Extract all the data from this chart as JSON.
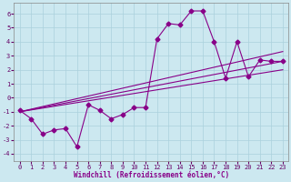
{
  "background_color": "#cce8f0",
  "grid_color": "#aad0dc",
  "line_color": "#880088",
  "marker_size": 2.5,
  "line_width": 0.8,
  "xlabel": "Windchill (Refroidissement éolien,°C)",
  "xlabel_fontsize": 5.5,
  "tick_fontsize": 5.0,
  "xlim": [
    -0.5,
    23.5
  ],
  "ylim": [
    -4.5,
    6.8
  ],
  "yticks": [
    -4,
    -3,
    -2,
    -1,
    0,
    1,
    2,
    3,
    4,
    5,
    6
  ],
  "xticks": [
    0,
    1,
    2,
    3,
    4,
    5,
    6,
    7,
    8,
    9,
    10,
    11,
    12,
    13,
    14,
    15,
    16,
    17,
    18,
    19,
    20,
    21,
    22,
    23
  ],
  "main_x": [
    0,
    1,
    2,
    3,
    4,
    5,
    6,
    7,
    8,
    9,
    10,
    11,
    12,
    13,
    14,
    15,
    16,
    17,
    18,
    19,
    20,
    21,
    22,
    23
  ],
  "main_y": [
    -0.9,
    -1.5,
    -2.6,
    -2.3,
    -2.2,
    -3.5,
    -0.5,
    -0.9,
    -1.5,
    -1.2,
    -0.7,
    -0.7,
    4.2,
    5.3,
    5.2,
    6.2,
    6.2,
    4.0,
    1.4,
    4.0,
    1.5,
    2.7,
    2.6,
    2.6
  ],
  "trend1_x": [
    0,
    23
  ],
  "trend1_y": [
    -1.0,
    2.6
  ],
  "trend2_x": [
    0,
    23
  ],
  "trend2_y": [
    -1.0,
    3.3
  ],
  "trend3_x": [
    0,
    23
  ],
  "trend3_y": [
    -1.0,
    2.0
  ]
}
